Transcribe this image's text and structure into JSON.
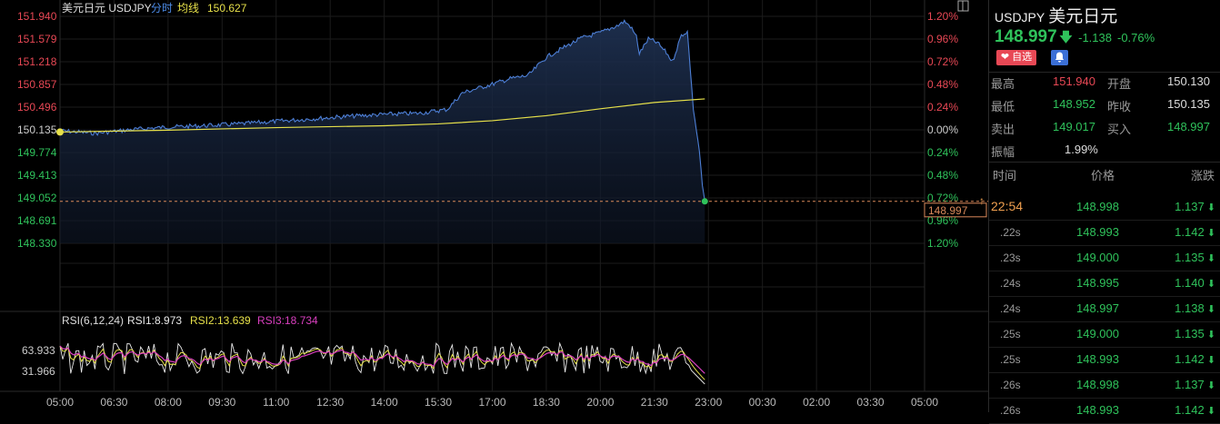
{
  "chart_data": [
    {
      "type": "line",
      "title": "美元日元 USDJPY",
      "header": {
        "name": "美元日元",
        "symbol": "USDJPY",
        "mode": "分时",
        "avg_label": "均线",
        "avg_value": "150.627"
      },
      "ylim": [
        148.33,
        151.94
      ],
      "y_ticks": [
        "151.940",
        "151.579",
        "151.218",
        "150.857",
        "150.496",
        "150.135",
        "149.774",
        "149.413",
        "149.052",
        "148.691",
        "148.330"
      ],
      "pct_ticks": [
        "1.20%",
        "0.96%",
        "0.72%",
        "0.48%",
        "0.24%",
        "0.00%",
        "0.24%",
        "0.48%",
        "0.72%",
        "0.96%",
        "1.20%"
      ],
      "x_ticks": [
        "05:00",
        "06:30",
        "08:00",
        "09:30",
        "11:00",
        "12:30",
        "14:00",
        "15:30",
        "17:00",
        "18:30",
        "20:00",
        "21:30",
        "23:00",
        "00:30",
        "02:00",
        "03:30",
        "05:00"
      ],
      "prev_close": 150.135,
      "last_price": "148.997",
      "last_time": "22:54",
      "series": [
        {
          "name": "分时",
          "color": "#4d7fd6",
          "x": [
            "05:00",
            "06:00",
            "07:00",
            "08:00",
            "09:00",
            "10:00",
            "11:00",
            "12:00",
            "13:00",
            "14:00",
            "15:00",
            "15:45",
            "16:10",
            "16:30",
            "17:00",
            "17:30",
            "18:00",
            "18:30",
            "19:00",
            "19:30",
            "20:00",
            "20:30",
            "20:40",
            "20:50",
            "21:00",
            "21:05",
            "21:20",
            "21:35",
            "21:50",
            "22:00",
            "22:15",
            "22:25",
            "22:35",
            "22:45",
            "22:50",
            "22:54"
          ],
          "y": [
            150.12,
            150.08,
            150.14,
            150.18,
            150.2,
            150.23,
            150.27,
            150.31,
            150.35,
            150.38,
            150.4,
            150.46,
            150.72,
            150.78,
            150.86,
            150.95,
            151.0,
            151.29,
            151.45,
            151.6,
            151.68,
            151.8,
            151.86,
            151.78,
            151.62,
            151.35,
            151.58,
            151.52,
            151.36,
            151.22,
            151.64,
            151.7,
            150.46,
            149.8,
            149.25,
            148.997
          ]
        },
        {
          "name": "均线",
          "color": "#e6e04a",
          "x": [
            "05:00",
            "08:00",
            "11:00",
            "14:00",
            "15:30",
            "17:00",
            "18:30",
            "20:00",
            "21:30",
            "22:54"
          ],
          "y": [
            150.1,
            150.13,
            150.17,
            150.2,
            150.23,
            150.28,
            150.36,
            150.47,
            150.57,
            150.627
          ]
        }
      ]
    },
    {
      "type": "line",
      "title": "RSI(6,12,24)",
      "y_ticks": [
        "63.933",
        "31.966"
      ],
      "series": [
        {
          "name": "RSI1",
          "value_label": "RSI1:8.973",
          "color": "#e8e8e8"
        },
        {
          "name": "RSI2",
          "value_label": "RSI2:13.639",
          "color": "#e6e04a"
        },
        {
          "name": "RSI3",
          "value_label": "RSI3:18.734",
          "color": "#d93fbf"
        }
      ]
    }
  ],
  "quote": {
    "symbol": "USDJPY",
    "name": "美元日元",
    "price": "148.997",
    "change": "-1.138",
    "change_pct": "-0.76%",
    "fav_label": "自选",
    "high_label": "最高",
    "high": "151.940",
    "open_label": "开盘",
    "open": "150.130",
    "low_label": "最低",
    "low": "148.952",
    "prev_label": "昨收",
    "prev": "150.135",
    "sell_label": "卖出",
    "sell": "149.017",
    "buy_label": "买入",
    "buy": "148.997",
    "amp_label": "振幅",
    "amp": "1.99%"
  },
  "ticks_table": {
    "headers": [
      "时间",
      "价格",
      "涨跌"
    ],
    "rows": [
      {
        "time": "22:54",
        "price": "148.998",
        "change": "1.137"
      },
      {
        "time": ".22s",
        "price": "148.993",
        "change": "1.142"
      },
      {
        "time": ".23s",
        "price": "149.000",
        "change": "1.135"
      },
      {
        "time": ".24s",
        "price": "148.995",
        "change": "1.140"
      },
      {
        "time": ".24s",
        "price": "148.997",
        "change": "1.138"
      },
      {
        "time": ".25s",
        "price": "149.000",
        "change": "1.135"
      },
      {
        "time": ".25s",
        "price": "148.993",
        "change": "1.142"
      },
      {
        "time": ".26s",
        "price": "148.998",
        "change": "1.137"
      },
      {
        "time": ".26s",
        "price": "148.993",
        "change": "1.142"
      }
    ]
  },
  "colors": {
    "up": "#e84855",
    "down": "#2fc25b",
    "accent": "#f0a050",
    "grid": "#1e1e1e"
  },
  "icons": {
    "down_arrow": "arrow-down-icon",
    "heart": "heart-icon",
    "bell": "bell-icon",
    "expand": "expand-icon"
  }
}
